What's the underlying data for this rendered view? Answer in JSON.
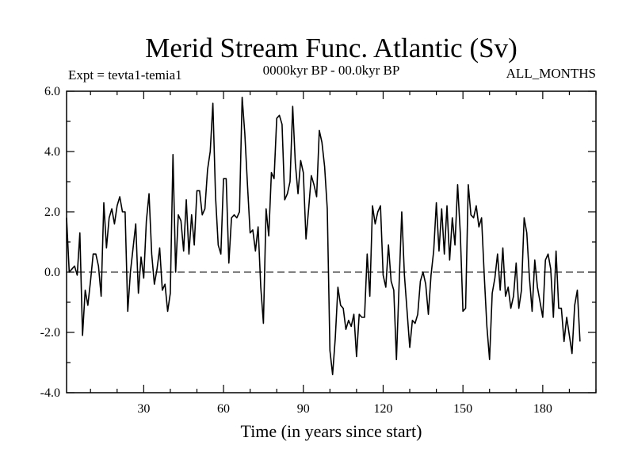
{
  "chart_data": {
    "type": "line",
    "title": "Merid Stream Func. Atlantic (Sv)",
    "subtitle_left": "Expt = tevta1-temia1",
    "subtitle_center": "0000kyr BP - 00.0kyr BP",
    "subtitle_right": "ALL_MONTHS",
    "xlabel": "Time (in years since start)",
    "ylabel": "",
    "xlim": [
      1,
      200
    ],
    "ylim": [
      -4,
      6
    ],
    "x_ticks": [
      30,
      60,
      90,
      120,
      150,
      180
    ],
    "x_tick_labels": [
      "30",
      "60",
      "90",
      "120",
      "150",
      "180"
    ],
    "y_ticks": [
      -4,
      -2,
      0,
      2,
      4,
      6
    ],
    "y_tick_labels": [
      "-4.0",
      "-2.0",
      "0.0",
      "2.0",
      "4.0",
      "6.0"
    ],
    "reference_line": {
      "y": 0,
      "style": "dashed"
    },
    "series": [
      {
        "name": "Merid Stream Func. Atlantic",
        "color": "#000000",
        "x_start": 1,
        "x_step": 1,
        "values": [
          1.8,
          0.0,
          0.1,
          0.2,
          -0.1,
          1.3,
          -2.1,
          -0.6,
          -1.1,
          -0.3,
          0.6,
          0.6,
          0.2,
          -0.8,
          2.3,
          0.8,
          1.8,
          2.1,
          1.6,
          2.2,
          2.5,
          2.0,
          2.0,
          -1.3,
          0.0,
          0.8,
          1.6,
          -0.7,
          0.5,
          -0.2,
          1.7,
          2.6,
          0.6,
          -0.4,
          0.1,
          0.8,
          -0.6,
          -0.4,
          -1.3,
          -0.7,
          3.9,
          0.0,
          1.9,
          1.7,
          0.7,
          2.4,
          0.6,
          1.9,
          0.9,
          2.7,
          2.7,
          1.9,
          2.1,
          3.4,
          4.0,
          5.6,
          2.5,
          0.9,
          0.6,
          3.1,
          3.1,
          0.3,
          1.8,
          1.9,
          1.8,
          2.0,
          5.8,
          4.6,
          2.9,
          1.3,
          1.4,
          0.7,
          1.5,
          -0.5,
          -1.7,
          2.1,
          1.2,
          3.3,
          3.1,
          5.1,
          5.2,
          4.9,
          2.4,
          2.6,
          3.0,
          5.5,
          3.6,
          2.6,
          3.7,
          3.3,
          1.1,
          2.1,
          3.2,
          2.9,
          2.5,
          4.7,
          4.3,
          3.5,
          2.1,
          -2.6,
          -3.4,
          -2.2,
          -0.5,
          -1.1,
          -1.2,
          -1.9,
          -1.6,
          -1.8,
          -1.4,
          -2.8,
          -1.4,
          -1.5,
          -1.5,
          0.6,
          -0.8,
          2.2,
          1.6,
          2.0,
          2.2,
          -0.1,
          -0.5,
          0.9,
          -0.3,
          -0.6,
          -2.9,
          -0.4,
          2.0,
          -0.1,
          -1.3,
          -2.5,
          -1.6,
          -1.7,
          -1.4,
          -0.3,
          0.0,
          -0.4,
          -1.4,
          -0.1,
          0.7,
          2.3,
          0.7,
          2.1,
          0.6,
          2.2,
          0.4,
          1.8,
          0.9,
          2.9,
          1.3,
          -1.3,
          -1.2,
          2.9,
          1.9,
          1.8,
          2.2,
          1.5,
          1.8,
          -0.1,
          -1.8,
          -2.9,
          -0.7,
          -0.2,
          0.6,
          -0.6,
          0.8,
          -0.8,
          -0.5,
          -1.2,
          -0.8,
          0.3,
          -1.2,
          -0.6,
          1.8,
          1.3,
          -0.2,
          -1.3,
          0.4,
          -0.5,
          -1.0,
          -1.5,
          0.4,
          0.6,
          0.1,
          -1.5,
          0.7,
          -1.2,
          -1.2,
          -2.3,
          -1.5,
          -2.1,
          -2.7,
          -1.1,
          -0.6,
          -2.3
        ]
      }
    ]
  }
}
